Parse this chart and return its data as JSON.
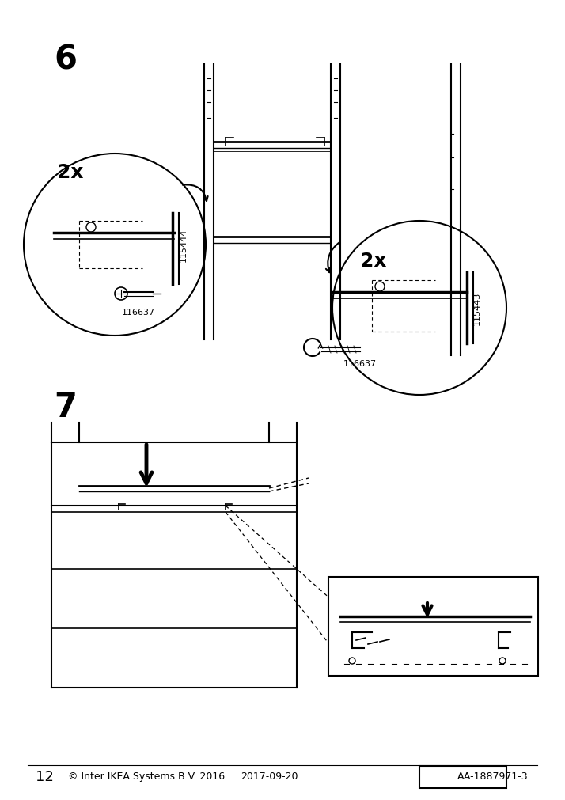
{
  "bg_color": "#ffffff",
  "page_number": "12",
  "copyright_text": "© Inter IKEA Systems B.V. 2016",
  "date_text": "2017-09-20",
  "product_code": "AA-1887971-3",
  "step6_label": "6",
  "step7_label": "7",
  "step6_2x_left": "2x",
  "step6_2x_right": "2x",
  "part1": "115444",
  "part2": "116637",
  "part3": "115443",
  "part4": "116637",
  "title_fontsize": 28,
  "label_fontsize": 18,
  "footer_fontsize": 11,
  "body_color": "#000000",
  "line_color": "#000000",
  "gray_color": "#888888"
}
